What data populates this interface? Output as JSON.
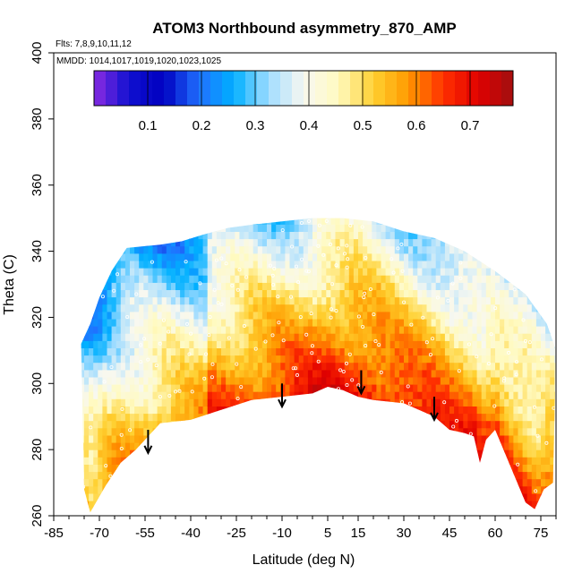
{
  "chart_data": {
    "type": "heatmap",
    "title": "ATOM3 Northbound asymmetry_870_AMP",
    "flights_note": "Flts: 7,8,9,10,11,12",
    "dates_note": "MMDD: 1014,1017,1019,1020,1023,1025",
    "xlabel": "Latitude (deg N)",
    "ylabel": "Theta (C)",
    "xlim": [
      -85,
      80
    ],
    "ylim": [
      260,
      400
    ],
    "x_ticks": [
      -85,
      -70,
      -55,
      -40,
      -25,
      -10,
      5,
      15,
      30,
      45,
      60,
      75
    ],
    "y_ticks": [
      260,
      280,
      300,
      320,
      340,
      360,
      380,
      400
    ],
    "colorbar": {
      "range": [
        0,
        0.78
      ],
      "ticks": [
        "0.1",
        "0.2",
        "0.3",
        "0.4",
        "0.5",
        "0.6",
        "0.7"
      ],
      "tick_values": [
        0.1,
        0.2,
        0.3,
        0.4,
        0.5,
        0.6,
        0.7
      ],
      "colors": [
        "#8a2be2",
        "#1010d0",
        "#0000c0",
        "#2070ff",
        "#00b0ff",
        "#a0dcff",
        "#f8f8f0",
        "#fffac0",
        "#ffd030",
        "#ff9a00",
        "#ff3000",
        "#e00000",
        "#a01010"
      ]
    },
    "data_bounds": {
      "upper": [
        [
          -76,
          312
        ],
        [
          -73,
          318
        ],
        [
          -70,
          326
        ],
        [
          -66,
          334
        ],
        [
          -61,
          341
        ],
        [
          -50,
          342
        ],
        [
          -43,
          343
        ],
        [
          -36,
          345
        ],
        [
          -28,
          347
        ],
        [
          -20,
          348
        ],
        [
          -10,
          349
        ],
        [
          0,
          350
        ],
        [
          10,
          350
        ],
        [
          20,
          349
        ],
        [
          30,
          346
        ],
        [
          40,
          344
        ],
        [
          50,
          340
        ],
        [
          60,
          334
        ],
        [
          70,
          327
        ],
        [
          77,
          318
        ],
        [
          80,
          310
        ]
      ],
      "lower": [
        [
          -75,
          268
        ],
        [
          -73,
          261
        ],
        [
          -68,
          269
        ],
        [
          -63,
          276
        ],
        [
          -58,
          280
        ],
        [
          -54,
          284
        ],
        [
          -50,
          288
        ],
        [
          -40,
          289
        ],
        [
          -30,
          292
        ],
        [
          -20,
          295
        ],
        [
          -10,
          296
        ],
        [
          0,
          297
        ],
        [
          5,
          299
        ],
        [
          10,
          298
        ],
        [
          15,
          296
        ],
        [
          20,
          295
        ],
        [
          30,
          294
        ],
        [
          40,
          290
        ],
        [
          45,
          286
        ],
        [
          50,
          285
        ],
        [
          53,
          284
        ],
        [
          55,
          276
        ],
        [
          57,
          283
        ],
        [
          60,
          286
        ],
        [
          65,
          275
        ],
        [
          70,
          264
        ],
        [
          73,
          262
        ],
        [
          76,
          268
        ],
        [
          79,
          270
        ]
      ]
    },
    "arrows": [
      {
        "lat": -54,
        "theta_top": 286,
        "theta_tip": 279
      },
      {
        "lat": -10,
        "theta_top": 300,
        "theta_tip": 293
      },
      {
        "lat": 16,
        "theta_top": 304,
        "theta_tip": 297
      },
      {
        "lat": 40,
        "theta_top": 296,
        "theta_tip": 289
      }
    ]
  }
}
